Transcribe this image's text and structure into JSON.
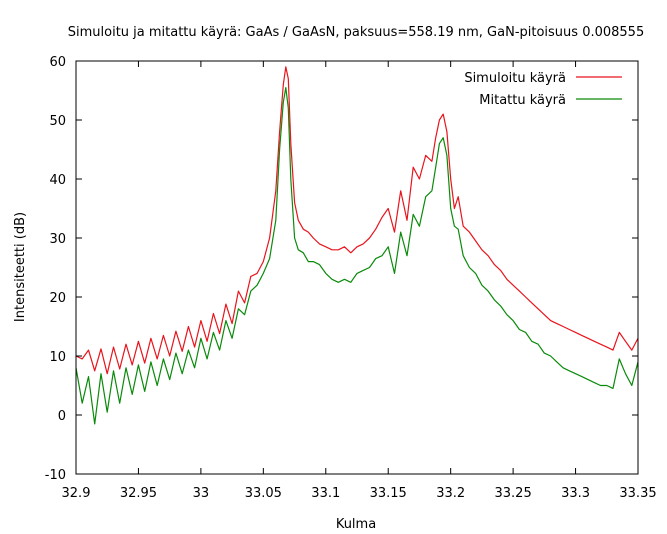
{
  "chart_data": {
    "type": "line",
    "title": "Simuloitu ja mitattu käyrä: GaAs / GaAsN, paksuus=558.19 nm, GaN-pitoisuus 0.008555",
    "xlabel": "Kulma",
    "ylabel": "Intensiteetti (dB)",
    "xlim": [
      32.9,
      33.35
    ],
    "ylim": [
      -10,
      60
    ],
    "xticks": [
      32.9,
      32.95,
      33,
      33.05,
      33.1,
      33.15,
      33.2,
      33.25,
      33.3,
      33.35
    ],
    "xtick_labels": [
      "32.9",
      "32.95",
      "33",
      "33.05",
      "33.1",
      "33.15",
      "33.2",
      "33.25",
      "33.3",
      "33.35"
    ],
    "yticks": [
      -10,
      0,
      10,
      20,
      30,
      40,
      50,
      60
    ],
    "ytick_labels": [
      "-10",
      "0",
      "10",
      "20",
      "30",
      "40",
      "50",
      "60"
    ],
    "grid": false,
    "legend_position": "top-right",
    "series": [
      {
        "name": "Simuloitu käyrä",
        "color": "#e8141c",
        "x": [
          32.9,
          32.905,
          32.91,
          32.915,
          32.92,
          32.925,
          32.93,
          32.935,
          32.94,
          32.945,
          32.95,
          32.955,
          32.96,
          32.965,
          32.97,
          32.975,
          32.98,
          32.985,
          32.99,
          32.995,
          33.0,
          33.005,
          33.01,
          33.015,
          33.02,
          33.025,
          33.03,
          33.035,
          33.04,
          33.045,
          33.05,
          33.055,
          33.06,
          33.063,
          33.066,
          33.068,
          33.07,
          33.072,
          33.075,
          33.078,
          33.082,
          33.086,
          33.09,
          33.095,
          33.1,
          33.105,
          33.11,
          33.115,
          33.12,
          33.125,
          33.13,
          33.135,
          33.14,
          33.145,
          33.15,
          33.155,
          33.16,
          33.165,
          33.17,
          33.175,
          33.18,
          33.185,
          33.188,
          33.191,
          33.194,
          33.197,
          33.2,
          33.203,
          33.206,
          33.21,
          33.215,
          33.22,
          33.225,
          33.23,
          33.235,
          33.24,
          33.245,
          33.25,
          33.255,
          33.26,
          33.265,
          33.27,
          33.275,
          33.28,
          33.285,
          33.29,
          33.295,
          33.3,
          33.305,
          33.31,
          33.315,
          33.32,
          33.325,
          33.33,
          33.335,
          33.34,
          33.345,
          33.35
        ],
        "y": [
          10.0,
          9.5,
          11.0,
          7.5,
          11.2,
          7.0,
          11.5,
          7.8,
          12.0,
          8.5,
          12.5,
          8.8,
          13.0,
          9.5,
          13.5,
          10.0,
          14.2,
          10.8,
          15.0,
          11.5,
          16.0,
          12.5,
          17.2,
          13.8,
          18.8,
          15.5,
          21.0,
          19.0,
          23.5,
          24.0,
          26.0,
          30.0,
          38.0,
          48.0,
          56.0,
          59.0,
          57.0,
          46.0,
          36.0,
          33.0,
          31.5,
          31.0,
          30.0,
          29.0,
          28.5,
          28.0,
          28.0,
          28.5,
          27.5,
          28.5,
          29.0,
          30.0,
          31.5,
          33.5,
          35.0,
          31.0,
          38.0,
          33.0,
          42.0,
          40.0,
          44.0,
          43.0,
          47.0,
          50.0,
          51.0,
          48.0,
          40.0,
          35.0,
          37.0,
          32.0,
          31.0,
          29.5,
          28.0,
          27.0,
          25.5,
          24.5,
          23.0,
          22.0,
          21.0,
          20.0,
          19.0,
          18.0,
          17.0,
          16.0,
          15.5,
          15.0,
          14.5,
          14.0,
          13.5,
          13.0,
          12.5,
          12.0,
          11.5,
          11.0,
          14.0,
          12.5,
          11.0,
          13.0
        ]
      },
      {
        "name": "Mitattu käyrä",
        "color": "#0a8a0a",
        "x": [
          32.9,
          32.905,
          32.91,
          32.915,
          32.92,
          32.925,
          32.93,
          32.935,
          32.94,
          32.945,
          32.95,
          32.955,
          32.96,
          32.965,
          32.97,
          32.975,
          32.98,
          32.985,
          32.99,
          32.995,
          33.0,
          33.005,
          33.01,
          33.015,
          33.02,
          33.025,
          33.03,
          33.035,
          33.04,
          33.045,
          33.05,
          33.055,
          33.06,
          33.063,
          33.066,
          33.068,
          33.07,
          33.072,
          33.075,
          33.078,
          33.082,
          33.086,
          33.09,
          33.095,
          33.1,
          33.105,
          33.11,
          33.115,
          33.12,
          33.125,
          33.13,
          33.135,
          33.14,
          33.145,
          33.15,
          33.155,
          33.16,
          33.165,
          33.17,
          33.175,
          33.18,
          33.185,
          33.188,
          33.191,
          33.194,
          33.197,
          33.2,
          33.203,
          33.206,
          33.21,
          33.215,
          33.22,
          33.225,
          33.23,
          33.235,
          33.24,
          33.245,
          33.25,
          33.255,
          33.26,
          33.265,
          33.27,
          33.275,
          33.28,
          33.285,
          33.29,
          33.295,
          33.3,
          33.305,
          33.31,
          33.315,
          33.32,
          33.325,
          33.33,
          33.335,
          33.34,
          33.345,
          33.35
        ],
        "y": [
          8.0,
          2.0,
          6.5,
          -1.5,
          7.0,
          0.5,
          7.5,
          2.0,
          8.0,
          3.5,
          8.5,
          4.0,
          9.0,
          5.0,
          9.5,
          6.0,
          10.5,
          7.0,
          11.0,
          8.0,
          13.0,
          9.5,
          14.0,
          11.0,
          16.0,
          13.0,
          18.0,
          17.0,
          21.0,
          22.0,
          24.0,
          26.5,
          33.0,
          45.0,
          53.0,
          55.5,
          52.0,
          40.0,
          30.0,
          28.0,
          27.5,
          26.0,
          26.0,
          25.5,
          24.0,
          23.0,
          22.5,
          23.0,
          22.5,
          24.0,
          24.5,
          25.0,
          26.5,
          27.0,
          28.5,
          24.0,
          31.0,
          27.0,
          34.0,
          32.0,
          37.0,
          38.0,
          42.0,
          46.0,
          47.0,
          44.0,
          35.0,
          32.0,
          31.5,
          27.0,
          25.0,
          24.0,
          22.0,
          21.0,
          19.5,
          18.5,
          17.0,
          16.0,
          14.5,
          14.0,
          12.5,
          12.0,
          10.5,
          10.0,
          9.0,
          8.0,
          7.5,
          7.0,
          6.5,
          6.0,
          5.5,
          5.0,
          5.0,
          4.5,
          9.5,
          7.0,
          5.0,
          9.0
        ]
      }
    ]
  }
}
